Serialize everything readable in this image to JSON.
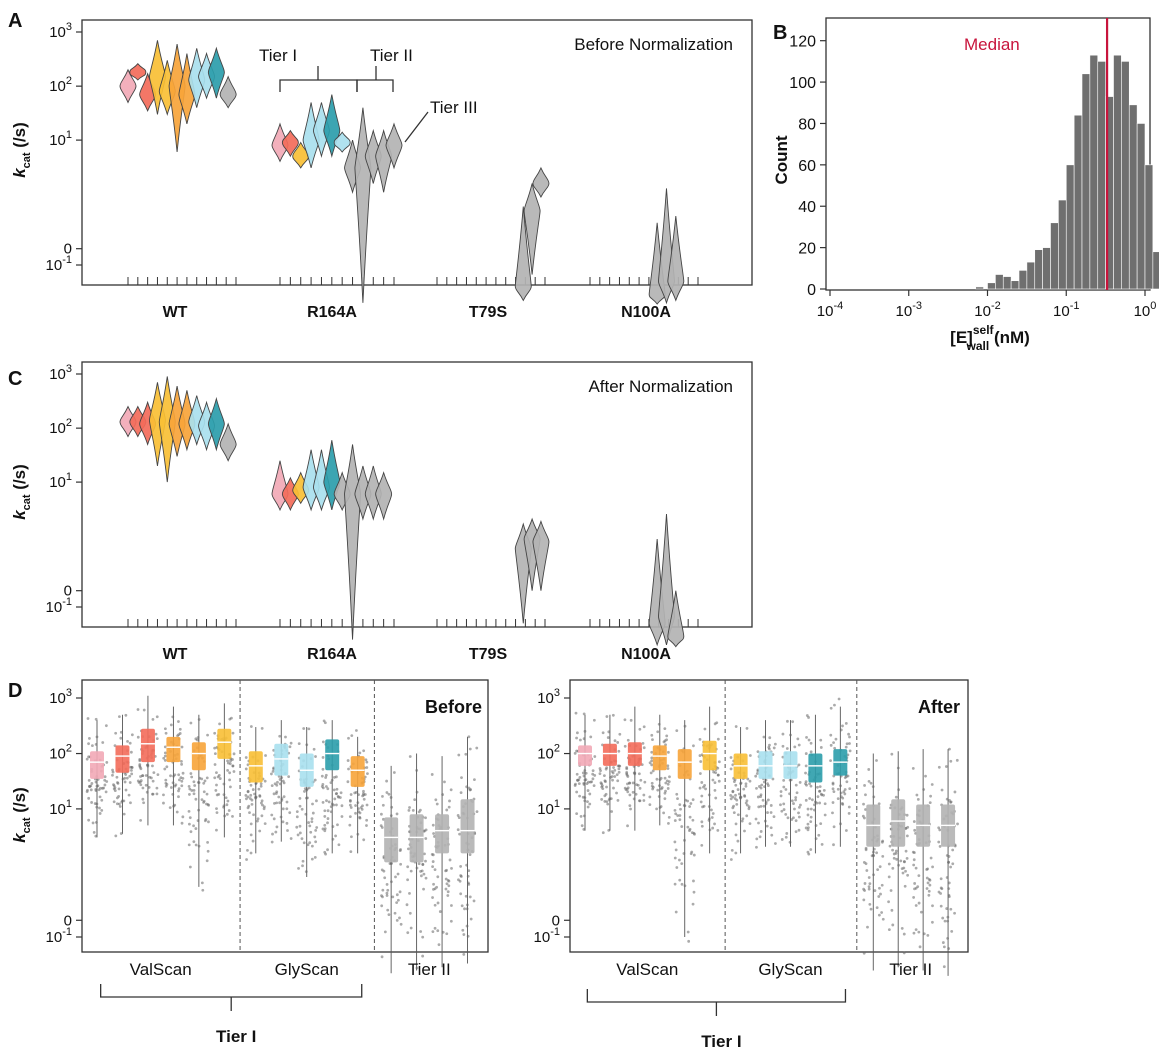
{
  "panels": {
    "A": {
      "label": "A",
      "annotation": "Before Normalization",
      "ylabel": "k",
      "ylabel_sub": "cat",
      "ylabel_unit": " (/s)",
      "tier_labels": [
        "Tier I",
        "Tier II",
        "Tier III"
      ]
    },
    "B": {
      "label": "B",
      "median_label": "Median",
      "ylabel": "Count",
      "xlabel": "[E]",
      "xlabel_sup": "self",
      "xlabel_sub": "wall",
      "xlabel_unit": " (nM)"
    },
    "C": {
      "label": "C",
      "annotation": "After Normalization",
      "ylabel": "k",
      "ylabel_sub": "cat",
      "ylabel_unit": " (/s)"
    },
    "D": {
      "label": "D",
      "left_title": "Before",
      "right_title": "After",
      "ylabel": "k",
      "ylabel_sub": "cat",
      "ylabel_unit": " (/s)",
      "group_labels": [
        "ValScan",
        "GlyScan",
        "Tier II"
      ],
      "bracket_label": "Tier I"
    }
  },
  "chart_data": [
    {
      "panel": "A",
      "type": "violin",
      "title": "Before Normalization",
      "ylabel": "kcat (/s)",
      "yscale": "symlog",
      "yticks": [
        "10^-1",
        "0",
        "10^1",
        "10^2",
        "10^3"
      ],
      "categories": [
        "WT",
        "R164A",
        "T79S",
        "N100A"
      ],
      "colors": {
        "pink": "#f2a9b6",
        "salmon": "#f36b5a",
        "gold": "#f8bf35",
        "orange": "#f7a43a",
        "skyblue": "#a9e0ee",
        "teal": "#2b9dab",
        "gray": "#b3b3b3"
      },
      "violins": [
        {
          "cat": "WT",
          "color": "pink",
          "median": 100,
          "low": 50,
          "high": 200
        },
        {
          "cat": "WT",
          "color": "salmon",
          "median": 180,
          "low": 130,
          "high": 260
        },
        {
          "cat": "WT",
          "color": "salmon",
          "median": 70,
          "low": 35,
          "high": 170
        },
        {
          "cat": "WT",
          "color": "gold",
          "median": 150,
          "low": 30,
          "high": 700
        },
        {
          "cat": "WT",
          "color": "gold",
          "median": 80,
          "low": 30,
          "high": 300
        },
        {
          "cat": "WT",
          "color": "orange",
          "median": 100,
          "low": 6,
          "high": 600
        },
        {
          "cat": "WT",
          "color": "orange",
          "median": 70,
          "low": 20,
          "high": 400
        },
        {
          "cat": "WT",
          "color": "skyblue",
          "median": 130,
          "low": 40,
          "high": 500
        },
        {
          "cat": "WT",
          "color": "skyblue",
          "median": 150,
          "low": 60,
          "high": 400
        },
        {
          "cat": "WT",
          "color": "teal",
          "median": 180,
          "low": 60,
          "high": 500
        },
        {
          "cat": "WT",
          "color": "gray",
          "median": 70,
          "low": 40,
          "high": 150
        },
        {
          "cat": "R164A",
          "color": "pink",
          "median": 8,
          "low": 4,
          "high": 20
        },
        {
          "cat": "R164A",
          "color": "salmon",
          "median": 9,
          "low": 5,
          "high": 15
        },
        {
          "cat": "R164A",
          "color": "gold",
          "median": 5,
          "low": 3,
          "high": 9
        },
        {
          "cat": "R164A",
          "color": "skyblue",
          "median": 10,
          "low": 3,
          "high": 50
        },
        {
          "cat": "R164A",
          "color": "skyblue",
          "median": 15,
          "low": 5,
          "high": 50
        },
        {
          "cat": "R164A",
          "color": "teal",
          "median": 15,
          "low": 5,
          "high": 70
        },
        {
          "cat": "R164A",
          "color": "skyblue",
          "median": 9,
          "low": 6,
          "high": 14
        },
        {
          "cat": "R164A",
          "color": "gray",
          "median": 3,
          "low": 1,
          "high": 10
        },
        {
          "cat": "R164A",
          "color": "gray",
          "median": 3,
          "low": -0.9,
          "high": 40
        },
        {
          "cat": "R164A",
          "color": "gray",
          "median": 5,
          "low": 1.5,
          "high": 15
        },
        {
          "cat": "R164A",
          "color": "gray",
          "median": 5,
          "low": 1,
          "high": 15
        },
        {
          "cat": "R164A",
          "color": "gray",
          "median": 8,
          "low": 3,
          "high": 20
        },
        {
          "cat": "T79S",
          "color": "gray",
          "median": -0.4,
          "low": -0.8,
          "high": 0.5
        },
        {
          "cat": "T79S",
          "color": "gray",
          "median": 0.4,
          "low": -0.2,
          "high": 1.5
        },
        {
          "cat": "T79S",
          "color": "gray",
          "median": 1.5,
          "low": 0.8,
          "high": 3
        },
        {
          "cat": "N100A",
          "color": "gray",
          "median": -0.6,
          "low": -0.95,
          "high": 0.2
        },
        {
          "cat": "N100A",
          "color": "gray",
          "median": -0.3,
          "low": -0.9,
          "high": 1.2
        },
        {
          "cat": "N100A",
          "color": "gray",
          "median": -0.3,
          "low": -0.8,
          "high": 0.3
        }
      ]
    },
    {
      "panel": "B",
      "type": "bar",
      "xlabel": "[E]wall^self (nM)",
      "ylabel": "Count",
      "xscale": "log",
      "xlim": [
        "10^-4",
        "10^0"
      ],
      "ylim": [
        0,
        130
      ],
      "yticks": [
        0,
        20,
        40,
        60,
        80,
        100,
        120
      ],
      "median_x": 0.33,
      "median_color": "#c8143c",
      "bar_color": "#6f6f6f",
      "log10_bin_centers": [
        -2.1,
        -1.95,
        -1.85,
        -1.75,
        -1.65,
        -1.55,
        -1.45,
        -1.35,
        -1.25,
        -1.15,
        -1.05,
        -0.95,
        -0.85,
        -0.75,
        -0.65,
        -0.55,
        -0.45,
        -0.35,
        -0.25,
        -0.15,
        -0.05,
        0.05,
        0.15,
        0.25,
        0.35,
        0.45,
        0.55,
        0.65
      ],
      "counts": [
        1,
        3,
        7,
        6,
        4,
        9,
        13,
        19,
        20,
        32,
        43,
        60,
        84,
        104,
        113,
        110,
        93,
        113,
        110,
        89,
        80,
        60,
        18,
        12,
        5,
        2,
        4,
        2
      ]
    },
    {
      "panel": "C",
      "type": "violin",
      "title": "After Normalization",
      "ylabel": "kcat (/s)",
      "yscale": "symlog",
      "yticks": [
        "10^-1",
        "0",
        "10^1",
        "10^2",
        "10^3"
      ],
      "categories": [
        "WT",
        "R164A",
        "T79S",
        "N100A"
      ],
      "violins": [
        {
          "cat": "WT",
          "color": "pink",
          "median": 130,
          "low": 70,
          "high": 250
        },
        {
          "cat": "WT",
          "color": "salmon",
          "median": 130,
          "low": 70,
          "high": 250
        },
        {
          "cat": "WT",
          "color": "salmon",
          "median": 120,
          "low": 50,
          "high": 300
        },
        {
          "cat": "WT",
          "color": "gold",
          "median": 140,
          "low": 20,
          "high": 700
        },
        {
          "cat": "WT",
          "color": "gold",
          "median": 130,
          "low": 10,
          "high": 900
        },
        {
          "cat": "WT",
          "color": "orange",
          "median": 120,
          "low": 30,
          "high": 600
        },
        {
          "cat": "WT",
          "color": "orange",
          "median": 120,
          "low": 40,
          "high": 500
        },
        {
          "cat": "WT",
          "color": "skyblue",
          "median": 130,
          "low": 50,
          "high": 400
        },
        {
          "cat": "WT",
          "color": "skyblue",
          "median": 110,
          "low": 40,
          "high": 300
        },
        {
          "cat": "WT",
          "color": "teal",
          "median": 120,
          "low": 40,
          "high": 350
        },
        {
          "cat": "WT",
          "color": "gray",
          "median": 50,
          "low": 25,
          "high": 120
        },
        {
          "cat": "R164A",
          "color": "pink",
          "median": 6,
          "low": 3,
          "high": 25
        },
        {
          "cat": "R164A",
          "color": "salmon",
          "median": 6,
          "low": 3,
          "high": 12
        },
        {
          "cat": "R164A",
          "color": "gold",
          "median": 7,
          "low": 4,
          "high": 15
        },
        {
          "cat": "R164A",
          "color": "skyblue",
          "median": 8,
          "low": 3,
          "high": 40
        },
        {
          "cat": "R164A",
          "color": "skyblue",
          "median": 8,
          "low": 3,
          "high": 40
        },
        {
          "cat": "R164A",
          "color": "teal",
          "median": 10,
          "low": 3,
          "high": 60
        },
        {
          "cat": "R164A",
          "color": "gray",
          "median": 6,
          "low": 3,
          "high": 15
        },
        {
          "cat": "R164A",
          "color": "gray",
          "median": 6,
          "low": -0.7,
          "high": 50
        },
        {
          "cat": "R164A",
          "color": "gray",
          "median": 6,
          "low": 2,
          "high": 20
        },
        {
          "cat": "R164A",
          "color": "gray",
          "median": 6,
          "low": 2,
          "high": 20
        },
        {
          "cat": "R164A",
          "color": "gray",
          "median": 6,
          "low": 2,
          "high": 15
        },
        {
          "cat": "T79S",
          "color": "gray",
          "median": 0.5,
          "low": -0.3,
          "high": 1.6
        },
        {
          "cat": "T79S",
          "color": "gray",
          "median": 0.8,
          "low": 0,
          "high": 2
        },
        {
          "cat": "T79S",
          "color": "gray",
          "median": 0.7,
          "low": 0,
          "high": 1.8
        },
        {
          "cat": "N100A",
          "color": "gray",
          "median": -0.3,
          "low": -0.9,
          "high": 0.8
        },
        {
          "cat": "N100A",
          "color": "gray",
          "median": -0.2,
          "low": -0.9,
          "high": 2.5
        },
        {
          "cat": "N100A",
          "color": "gray",
          "median": -0.6,
          "low": -0.98,
          "high": 0
        }
      ]
    },
    {
      "panel": "D-left",
      "type": "box",
      "title": "Before",
      "ylabel": "kcat (/s)",
      "yscale": "symlog",
      "yticks": [
        "10^-1",
        "0",
        "10^1",
        "10^2",
        "10^3"
      ],
      "groups": [
        "ValScan",
        "GlyScan",
        "Tier II"
      ],
      "boxes": [
        {
          "group": "ValScan",
          "color": "pink",
          "median": 70,
          "q1": 35,
          "q3": 110,
          "low": 3,
          "high": 400
        },
        {
          "group": "ValScan",
          "color": "salmon",
          "median": 90,
          "q1": 45,
          "q3": 140,
          "low": 3.5,
          "high": 500
        },
        {
          "group": "ValScan",
          "color": "salmon",
          "median": 150,
          "q1": 70,
          "q3": 280,
          "low": 5,
          "high": 1100
        },
        {
          "group": "ValScan",
          "color": "orange",
          "median": 130,
          "q1": 70,
          "q3": 200,
          "low": 5,
          "high": 700
        },
        {
          "group": "ValScan",
          "color": "orange",
          "median": 100,
          "q1": 50,
          "q3": 160,
          "low": 0.3,
          "high": 500
        },
        {
          "group": "ValScan",
          "color": "gold",
          "median": 160,
          "q1": 80,
          "q3": 280,
          "low": 3,
          "high": 800
        },
        {
          "group": "GlyScan",
          "color": "gold",
          "median": 60,
          "q1": 30,
          "q3": 110,
          "low": 1.5,
          "high": 300
        },
        {
          "group": "GlyScan",
          "color": "skyblue",
          "median": 80,
          "q1": 40,
          "q3": 150,
          "low": 2.5,
          "high": 400
        },
        {
          "group": "GlyScan",
          "color": "skyblue",
          "median": 50,
          "q1": 25,
          "q3": 100,
          "low": 0.5,
          "high": 300
        },
        {
          "group": "GlyScan",
          "color": "teal",
          "median": 100,
          "q1": 50,
          "q3": 180,
          "low": 1.5,
          "high": 400
        },
        {
          "group": "GlyScan",
          "color": "orange",
          "median": 50,
          "q1": 25,
          "q3": 90,
          "low": 1.5,
          "high": 200
        },
        {
          "group": "Tier II",
          "color": "gray",
          "median": 3,
          "q1": 1,
          "q3": 7,
          "low": -0.8,
          "high": 60
        },
        {
          "group": "Tier II",
          "color": "gray",
          "median": 3,
          "q1": 1,
          "q3": 8,
          "low": -0.7,
          "high": 100
        },
        {
          "group": "Tier II",
          "color": "gray",
          "median": 4,
          "q1": 1.5,
          "q3": 8,
          "low": -0.6,
          "high": 90
        },
        {
          "group": "Tier II",
          "color": "gray",
          "median": 4,
          "q1": 1.5,
          "q3": 15,
          "low": -0.5,
          "high": 200
        }
      ]
    },
    {
      "panel": "D-right",
      "type": "box",
      "title": "After",
      "ylabel": "kcat (/s)",
      "yscale": "symlog",
      "yticks": [
        "10^-1",
        "0",
        "10^1",
        "10^2",
        "10^3"
      ],
      "groups": [
        "ValScan",
        "GlyScan",
        "Tier II"
      ],
      "boxes": [
        {
          "group": "ValScan",
          "color": "pink",
          "median": 100,
          "q1": 60,
          "q3": 140,
          "low": 4,
          "high": 500
        },
        {
          "group": "ValScan",
          "color": "salmon",
          "median": 100,
          "q1": 60,
          "q3": 150,
          "low": 4,
          "high": 500
        },
        {
          "group": "ValScan",
          "color": "salmon",
          "median": 100,
          "q1": 60,
          "q3": 160,
          "low": 4,
          "high": 700
        },
        {
          "group": "ValScan",
          "color": "orange",
          "median": 90,
          "q1": 50,
          "q3": 140,
          "low": 5,
          "high": 500
        },
        {
          "group": "ValScan",
          "color": "orange",
          "median": 70,
          "q1": 35,
          "q3": 120,
          "low": -0.1,
          "high": 400
        },
        {
          "group": "ValScan",
          "color": "gold",
          "median": 100,
          "q1": 50,
          "q3": 170,
          "low": 1.5,
          "high": 700
        },
        {
          "group": "GlyScan",
          "color": "gold",
          "median": 60,
          "q1": 35,
          "q3": 100,
          "low": 1.5,
          "high": 300
        },
        {
          "group": "GlyScan",
          "color": "skyblue",
          "median": 60,
          "q1": 35,
          "q3": 110,
          "low": 2,
          "high": 400
        },
        {
          "group": "GlyScan",
          "color": "skyblue",
          "median": 60,
          "q1": 35,
          "q3": 110,
          "low": 2,
          "high": 400
        },
        {
          "group": "GlyScan",
          "color": "teal",
          "median": 60,
          "q1": 30,
          "q3": 100,
          "low": 1.5,
          "high": 500
        },
        {
          "group": "GlyScan",
          "color": "teal",
          "median": 70,
          "q1": 40,
          "q3": 120,
          "low": 2,
          "high": 700
        },
        {
          "group": "Tier II",
          "color": "gray",
          "median": 5,
          "q1": 2,
          "q3": 12,
          "low": -0.7,
          "high": 100
        },
        {
          "group": "Tier II",
          "color": "gray",
          "median": 6,
          "q1": 2,
          "q3": 15,
          "low": -0.6,
          "high": 110
        },
        {
          "group": "Tier II",
          "color": "gray",
          "median": 5,
          "q1": 2,
          "q3": 12,
          "low": -0.7,
          "high": 120
        },
        {
          "group": "Tier II",
          "color": "gray",
          "median": 5,
          "q1": 2,
          "q3": 12,
          "low": -0.9,
          "high": 120
        }
      ]
    }
  ]
}
